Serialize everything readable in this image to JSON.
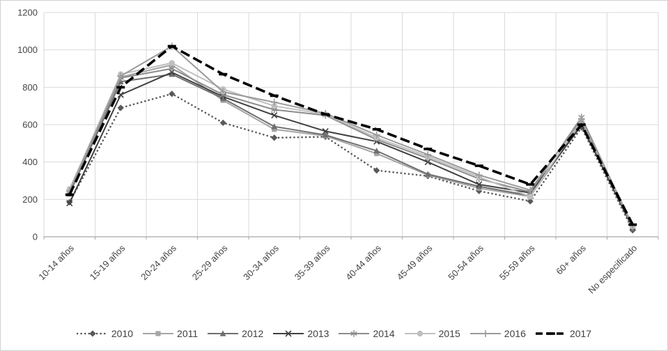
{
  "chart_data": {
    "type": "line",
    "title": "",
    "xlabel": "",
    "ylabel": "",
    "ylim": [
      0,
      1200
    ],
    "y_ticks": [
      0,
      200,
      400,
      600,
      800,
      1000,
      1200
    ],
    "grid": true,
    "legend_position": "bottom",
    "categories": [
      "10-14 años",
      "15-19 años",
      "20-24 años",
      "25-29 años",
      "30-34 años",
      "35-39 años",
      "40-44 años",
      "45-49 años",
      "50-54 años",
      "55-59 años",
      "60+ años",
      "No especificado"
    ],
    "series": [
      {
        "name": "2010",
        "style": "dotted",
        "marker": "diamond",
        "color": "#595959",
        "values": [
          185,
          690,
          765,
          610,
          530,
          535,
          355,
          325,
          245,
          190,
          585,
          35
        ]
      },
      {
        "name": "2011",
        "style": "solid",
        "marker": "square",
        "color": "#a5a5a5",
        "values": [
          250,
          855,
          920,
          730,
          575,
          540,
          445,
          330,
          260,
          215,
          610,
          50
        ]
      },
      {
        "name": "2012",
        "style": "solid",
        "marker": "triangle",
        "color": "#6e6e6e",
        "values": [
          230,
          830,
          870,
          740,
          590,
          545,
          460,
          335,
          270,
          220,
          600,
          45
        ]
      },
      {
        "name": "2013",
        "style": "solid",
        "marker": "x",
        "color": "#404040",
        "values": [
          180,
          760,
          880,
          750,
          650,
          565,
          510,
          400,
          280,
          235,
          595,
          50
        ]
      },
      {
        "name": "2014",
        "style": "solid",
        "marker": "asterisk",
        "color": "#8c8c8c",
        "values": [
          240,
          850,
          900,
          760,
          680,
          650,
          520,
          420,
          310,
          240,
          640,
          55
        ]
      },
      {
        "name": "2015",
        "style": "solid",
        "marker": "circle",
        "color": "#bfbfbf",
        "values": [
          255,
          870,
          930,
          790,
          700,
          655,
          530,
          430,
          320,
          215,
          625,
          55
        ]
      },
      {
        "name": "2016",
        "style": "solid",
        "marker": "plus",
        "color": "#9b9b9b",
        "values": [
          245,
          860,
          1020,
          775,
          720,
          660,
          545,
          440,
          330,
          250,
          630,
          60
        ]
      },
      {
        "name": "2017",
        "style": "dashed",
        "marker": "dash",
        "color": "#000000",
        "values": [
          225,
          800,
          1020,
          870,
          755,
          655,
          575,
          470,
          380,
          280,
          600,
          65
        ]
      }
    ],
    "colors": {
      "gridline": "#d9d9d9",
      "axis": "#a6a6a6",
      "tick_text": "#444444"
    }
  }
}
